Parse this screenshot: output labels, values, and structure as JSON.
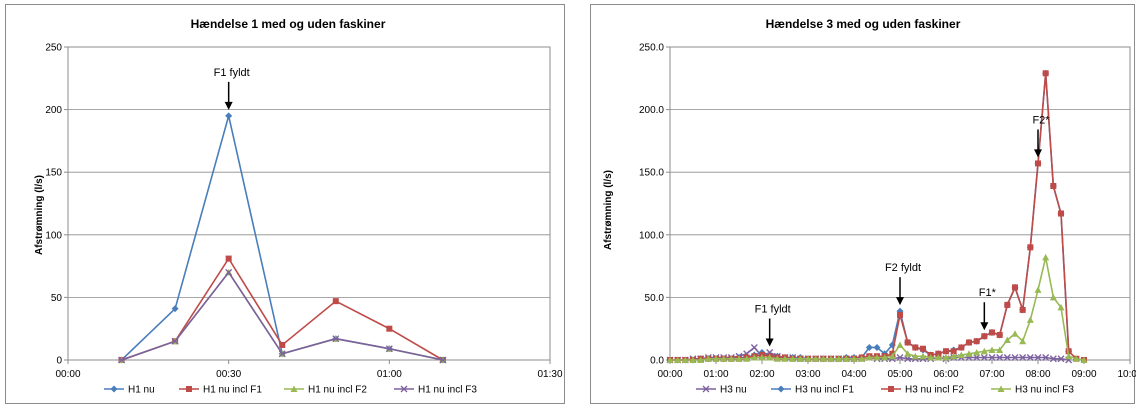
{
  "chart_data": [
    {
      "type": "line",
      "title": "Hændelse 1 med og uden  faskiner",
      "xlabel": "",
      "ylabel": "Afstrømning (l/s)",
      "x_tick_labels": [
        "00:00",
        "00:30",
        "01:00",
        "01:30"
      ],
      "y_tick_labels": [
        "0",
        "50",
        "100",
        "150",
        "200",
        "250"
      ],
      "xlim": [
        0,
        90
      ],
      "ylim": [
        0,
        250
      ],
      "grid": "horizontal",
      "legend": "bottom",
      "series": [
        {
          "name": "H1 nu",
          "color": "#4a7ebb",
          "marker": "diamond",
          "x": [
            10,
            20,
            30,
            40,
            50,
            60,
            70
          ],
          "y": [
            0,
            41,
            195,
            5,
            17,
            9,
            0
          ]
        },
        {
          "name": "H1  nu incl F1",
          "color": "#be4b48",
          "marker": "square",
          "x": [
            10,
            20,
            30,
            40,
            50,
            60,
            70
          ],
          "y": [
            0,
            15,
            81,
            12,
            47,
            25,
            0
          ]
        },
        {
          "name": "H1  nu incl F2",
          "color": "#98b954",
          "marker": "triangle",
          "x": [
            10,
            20,
            30,
            40,
            50,
            60,
            70
          ],
          "y": [
            0,
            15,
            70,
            5,
            17,
            9,
            0
          ]
        },
        {
          "name": "H1  nu incl F3",
          "color": "#7d60a0",
          "marker": "x",
          "x": [
            10,
            20,
            30,
            40,
            50,
            60,
            70
          ],
          "y": [
            0,
            15,
            70,
            5,
            17,
            9,
            0
          ]
        }
      ],
      "annotations": [
        {
          "text": "F1 fyldt",
          "x": 30,
          "y": 195
        }
      ]
    },
    {
      "type": "line",
      "title": "Hændelse 3 med og uden faskiner",
      "xlabel": "",
      "ylabel": "Afstrømning (l/s)",
      "x_tick_labels": [
        "00:00",
        "01:00",
        "02:00",
        "03:00",
        "04:00",
        "05:00",
        "06:00",
        "07:00",
        "08:00",
        "09:00",
        "10:00"
      ],
      "y_tick_labels": [
        "0.0",
        "50.0",
        "100.0",
        "150.0",
        "200.0",
        "250.0"
      ],
      "xlim": [
        0,
        600
      ],
      "ylim": [
        0,
        250
      ],
      "grid": "horizontal",
      "legend": "bottom",
      "series": [
        {
          "name": "H3 nu",
          "color": "#7d60a0",
          "marker": "x",
          "x": [
            0,
            10,
            20,
            30,
            40,
            50,
            60,
            70,
            80,
            90,
            100,
            110,
            120,
            130,
            140,
            150,
            160,
            170,
            180,
            190,
            200,
            210,
            220,
            230,
            240,
            250,
            260,
            270,
            280,
            290,
            300,
            310,
            320,
            330,
            340,
            350,
            360,
            370,
            380,
            390,
            400,
            410,
            420,
            430,
            440,
            450,
            460,
            470,
            480,
            490,
            500,
            510,
            520
          ],
          "y": [
            0,
            0,
            0,
            1,
            1,
            2,
            2,
            2,
            2,
            3,
            5,
            10,
            3,
            6,
            3,
            2,
            2,
            1,
            1,
            1,
            1,
            1,
            1,
            1,
            1,
            1,
            2,
            1,
            1,
            1,
            2,
            1,
            1,
            1,
            1,
            2,
            1,
            2,
            2,
            2,
            2,
            2,
            2,
            2,
            2,
            2,
            2,
            2,
            2,
            2,
            1,
            1,
            0
          ]
        },
        {
          "name": "H3  nu incl F1",
          "color": "#4a7ebb",
          "marker": "diamond",
          "x": [
            0,
            10,
            20,
            30,
            40,
            50,
            60,
            70,
            80,
            90,
            100,
            110,
            120,
            130,
            140,
            150,
            160,
            170,
            180,
            190,
            200,
            210,
            220,
            230,
            240,
            250,
            260,
            270,
            280,
            290,
            300,
            310,
            320,
            330,
            340,
            350,
            360,
            370,
            380,
            390,
            400,
            410,
            420,
            430,
            440,
            450,
            460,
            470,
            480,
            490,
            500,
            510,
            520
          ],
          "y": [
            0,
            0,
            0,
            0,
            1,
            1,
            1,
            1,
            1,
            2,
            2,
            4,
            6,
            4,
            3,
            2,
            2,
            2,
            1,
            1,
            1,
            1,
            1,
            2,
            2,
            2,
            10,
            10,
            5,
            12,
            39,
            14,
            10,
            8,
            4,
            5,
            7,
            8,
            10,
            14,
            15,
            19,
            22,
            20,
            44,
            58,
            40,
            90,
            157,
            229,
            139,
            117,
            7
          ]
        },
        {
          "name": "H3 nu incl F2",
          "color": "#be4b48",
          "marker": "square",
          "x": [
            0,
            10,
            20,
            30,
            40,
            50,
            60,
            70,
            80,
            90,
            100,
            110,
            120,
            130,
            140,
            150,
            160,
            170,
            180,
            190,
            200,
            210,
            220,
            230,
            240,
            250,
            260,
            270,
            280,
            290,
            300,
            310,
            320,
            330,
            340,
            350,
            360,
            370,
            380,
            390,
            400,
            410,
            420,
            430,
            440,
            450,
            460,
            470,
            480,
            490,
            500,
            510,
            520,
            530,
            540
          ],
          "y": [
            0,
            0,
            0,
            0,
            1,
            1,
            1,
            1,
            1,
            1,
            2,
            3,
            4,
            3,
            2,
            2,
            1,
            1,
            1,
            1,
            1,
            1,
            1,
            1,
            1,
            2,
            3,
            3,
            3,
            5,
            36,
            14,
            10,
            9,
            4,
            5,
            7,
            7,
            10,
            14,
            15,
            19,
            22,
            20,
            44,
            58,
            40,
            90,
            157,
            229,
            139,
            117,
            7,
            1,
            0
          ]
        },
        {
          "name": "H3  nu incl F3",
          "color": "#98b954",
          "marker": "triangle",
          "x": [
            0,
            10,
            20,
            30,
            40,
            50,
            60,
            70,
            80,
            90,
            100,
            110,
            120,
            130,
            140,
            150,
            160,
            170,
            180,
            190,
            200,
            210,
            220,
            230,
            240,
            250,
            260,
            270,
            280,
            290,
            300,
            310,
            320,
            330,
            340,
            350,
            360,
            370,
            380,
            390,
            400,
            410,
            420,
            430,
            440,
            450,
            460,
            470,
            480,
            490,
            500,
            510,
            520,
            530,
            540
          ],
          "y": [
            0,
            0,
            0,
            0,
            0,
            1,
            1,
            1,
            1,
            1,
            1,
            2,
            2,
            2,
            1,
            1,
            1,
            1,
            1,
            1,
            1,
            1,
            1,
            1,
            1,
            1,
            2,
            2,
            2,
            3,
            12,
            5,
            3,
            3,
            2,
            2,
            2,
            3,
            4,
            5,
            6,
            7,
            8,
            8,
            16,
            21,
            15,
            32,
            56,
            82,
            50,
            42,
            3,
            1,
            0
          ]
        }
      ],
      "annotations": [
        {
          "text": "F1 fyldt",
          "x": 130,
          "y": 6
        },
        {
          "text": "F2 fyldt",
          "x": 300,
          "y": 39
        },
        {
          "text": "F1*",
          "x": 410,
          "y": 19
        },
        {
          "text": "F2*",
          "x": 480,
          "y": 157
        }
      ]
    }
  ]
}
